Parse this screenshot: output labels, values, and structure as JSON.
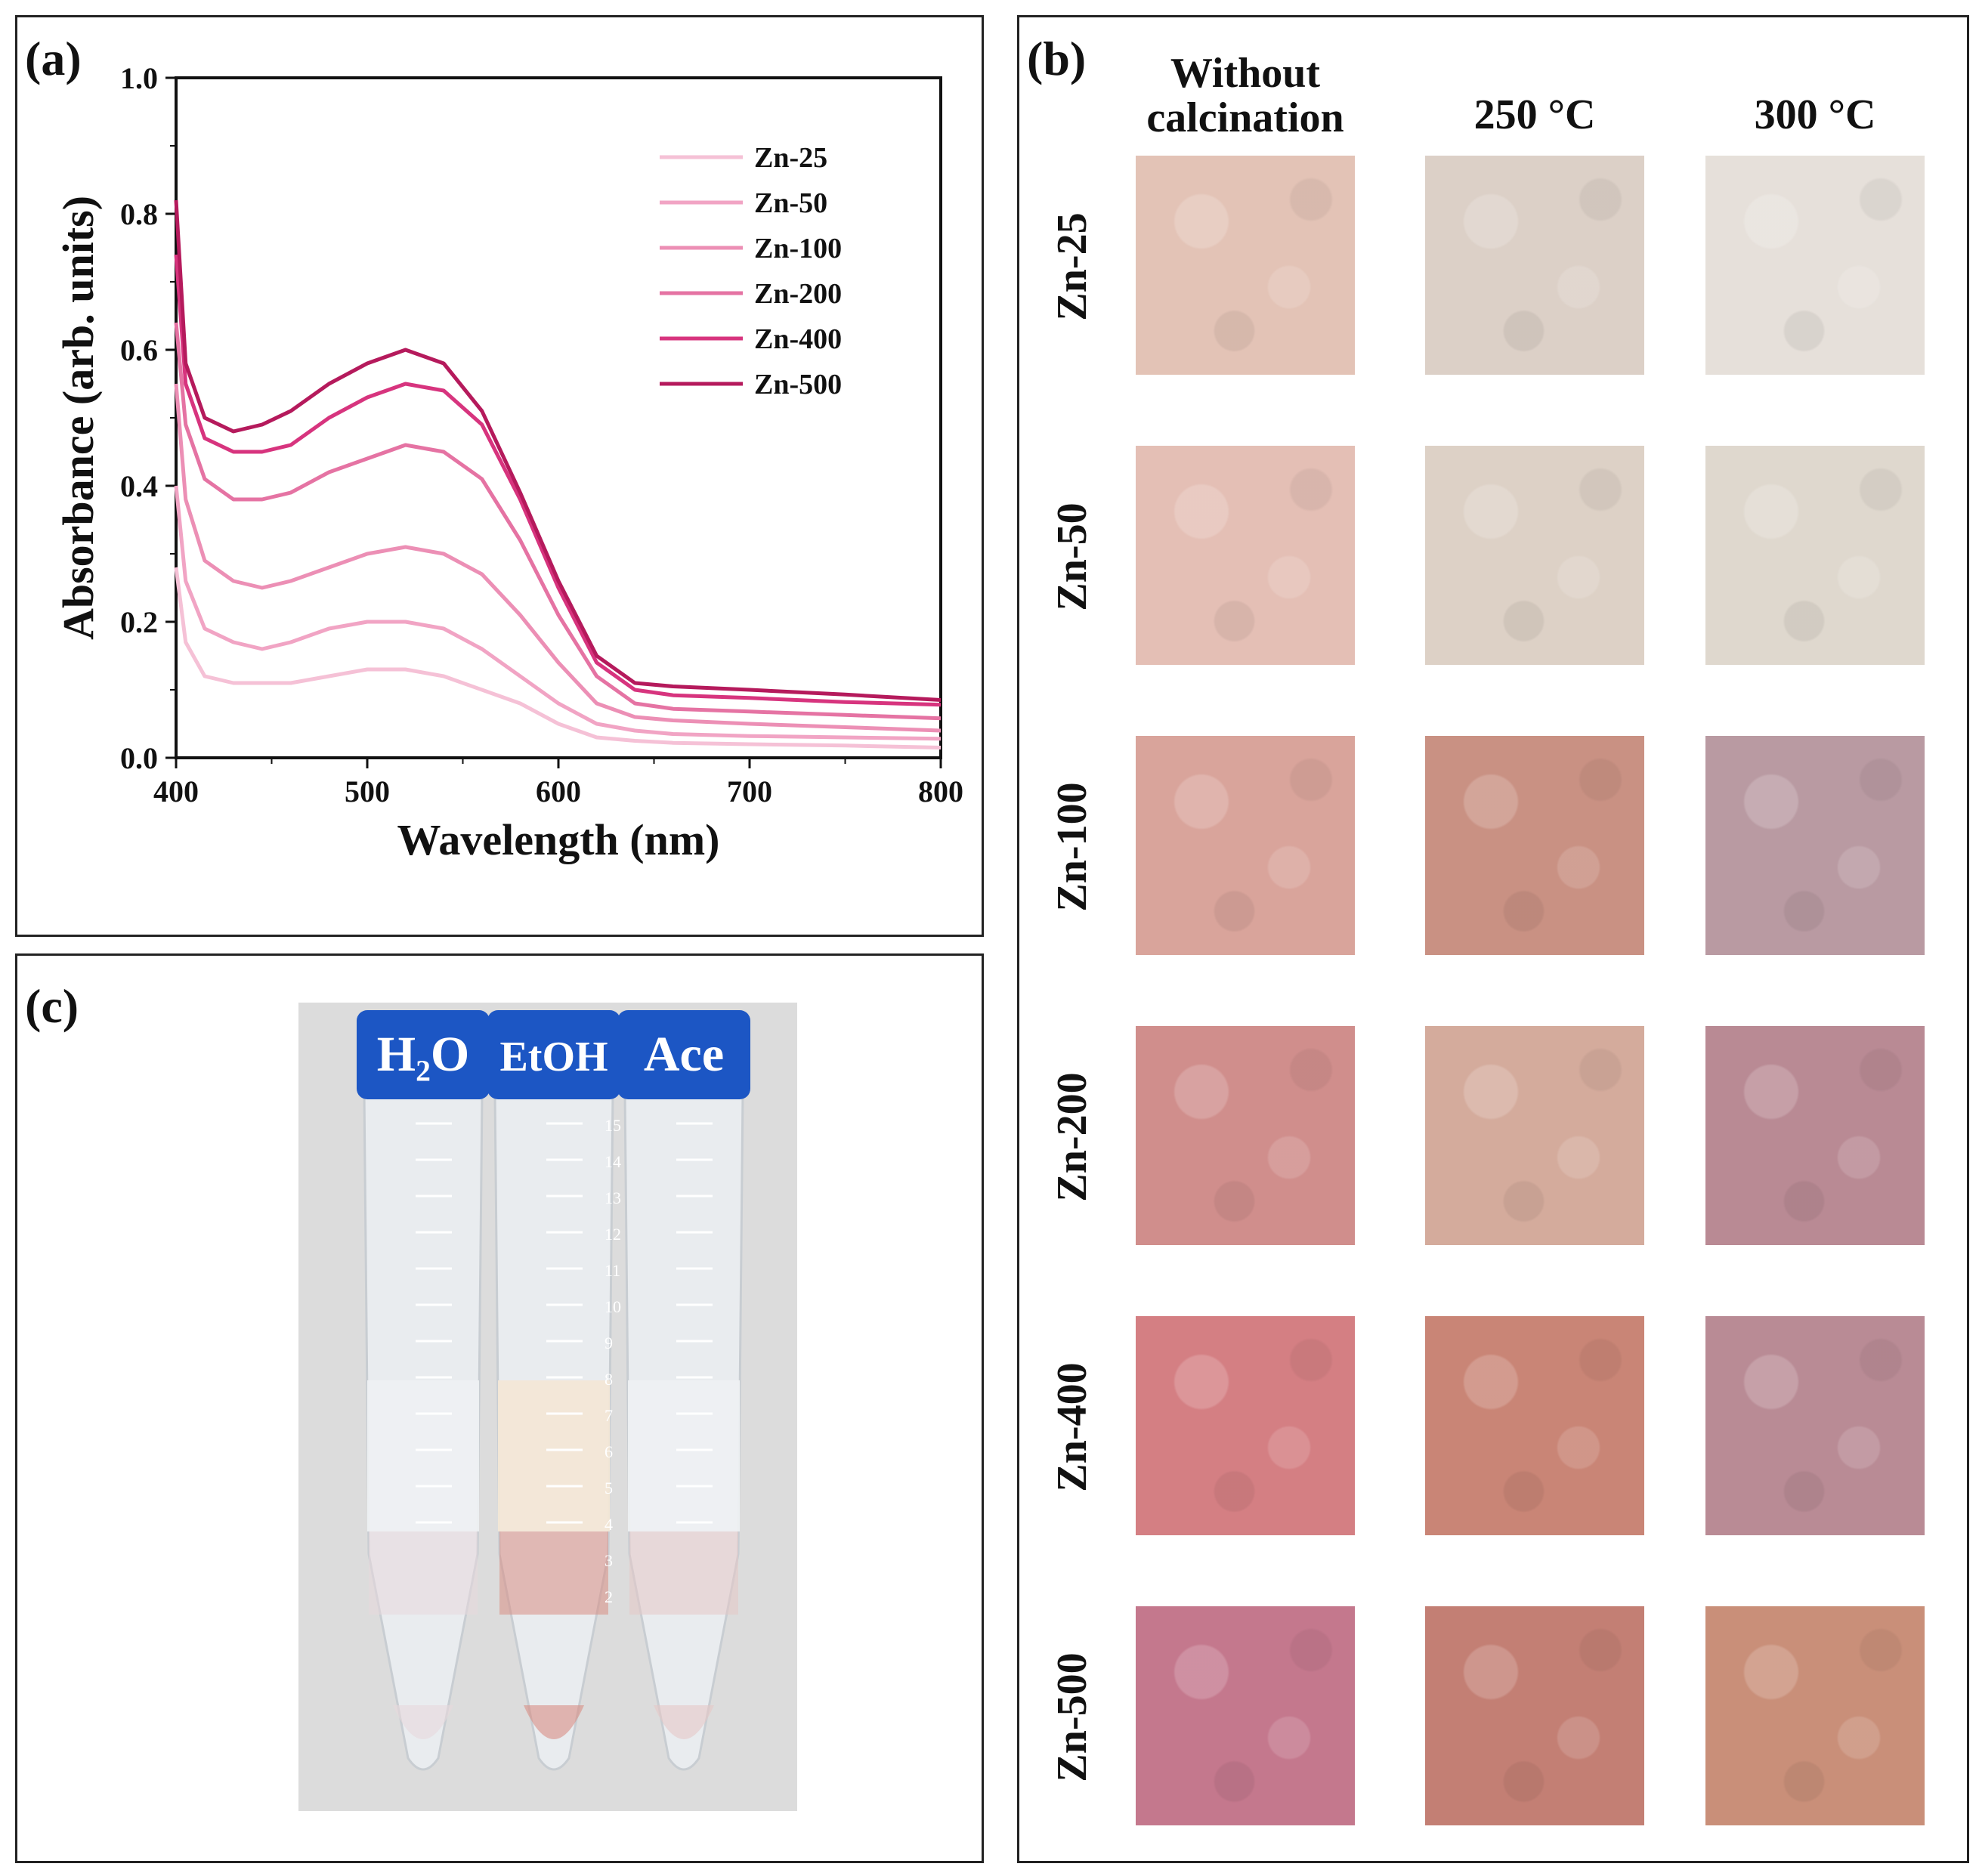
{
  "panel_a": {
    "label": "(a)",
    "chart_data": {
      "type": "line",
      "title": "",
      "xlabel": "Wavelength (nm)",
      "ylabel": "Absorbance (arb. units)",
      "xlim": [
        400,
        800
      ],
      "ylim": [
        0.0,
        1.0
      ],
      "xticks": [
        "400",
        "500",
        "600",
        "700",
        "800"
      ],
      "yticks": [
        "0.0",
        "0.2",
        "0.4",
        "0.6",
        "0.8",
        "1.0"
      ],
      "x": [
        400,
        405,
        415,
        430,
        445,
        460,
        480,
        500,
        520,
        540,
        560,
        580,
        600,
        620,
        640,
        660,
        700,
        750,
        800
      ],
      "legend_position": "top-right",
      "series": [
        {
          "name": "Zn-25",
          "color": "#f5c1d6",
          "values": [
            0.28,
            0.17,
            0.12,
            0.11,
            0.11,
            0.11,
            0.12,
            0.13,
            0.13,
            0.12,
            0.1,
            0.08,
            0.05,
            0.03,
            0.025,
            0.022,
            0.02,
            0.018,
            0.015
          ]
        },
        {
          "name": "Zn-50",
          "color": "#f1a4c4",
          "values": [
            0.4,
            0.26,
            0.19,
            0.17,
            0.16,
            0.17,
            0.19,
            0.2,
            0.2,
            0.19,
            0.16,
            0.12,
            0.08,
            0.05,
            0.04,
            0.035,
            0.032,
            0.03,
            0.028
          ]
        },
        {
          "name": "Zn-100",
          "color": "#ec8fb5",
          "values": [
            0.55,
            0.38,
            0.29,
            0.26,
            0.25,
            0.26,
            0.28,
            0.3,
            0.31,
            0.3,
            0.27,
            0.21,
            0.14,
            0.08,
            0.06,
            0.055,
            0.05,
            0.045,
            0.04
          ]
        },
        {
          "name": "Zn-200",
          "color": "#e573a3",
          "values": [
            0.64,
            0.49,
            0.41,
            0.38,
            0.38,
            0.39,
            0.42,
            0.44,
            0.46,
            0.45,
            0.41,
            0.32,
            0.21,
            0.12,
            0.08,
            0.072,
            0.068,
            0.063,
            0.058
          ]
        },
        {
          "name": "Zn-400",
          "color": "#d7347e",
          "values": [
            0.74,
            0.55,
            0.47,
            0.45,
            0.45,
            0.46,
            0.5,
            0.53,
            0.55,
            0.54,
            0.49,
            0.38,
            0.25,
            0.14,
            0.1,
            0.092,
            0.088,
            0.082,
            0.078
          ]
        },
        {
          "name": "Zn-500",
          "color": "#b51a5c",
          "values": [
            0.82,
            0.58,
            0.5,
            0.48,
            0.49,
            0.51,
            0.55,
            0.58,
            0.6,
            0.58,
            0.51,
            0.39,
            0.26,
            0.15,
            0.11,
            0.105,
            0.1,
            0.093,
            0.085
          ]
        }
      ]
    }
  },
  "panel_b": {
    "label": "(b)",
    "columns": [
      "Without calcination",
      "250 °C",
      "300 °C"
    ],
    "rows": [
      {
        "name": "Zn-25",
        "colors": [
          "#e3c3b6",
          "#dcd0c7",
          "#e6e0da"
        ]
      },
      {
        "name": "Zn-50",
        "colors": [
          "#e4bfb5",
          "#ddd1c6",
          "#dfd8ce"
        ]
      },
      {
        "name": "Zn-100",
        "colors": [
          "#d9a49b",
          "#c99183",
          "#b99aa2"
        ]
      },
      {
        "name": "Zn-200",
        "colors": [
          "#d08e8c",
          "#d4ab9c",
          "#b98a94"
        ]
      },
      {
        "name": "Zn-400",
        "colors": [
          "#d47f83",
          "#c98576",
          "#b98b95"
        ]
      },
      {
        "name": "Zn-500",
        "colors": [
          "#c4788d",
          "#c37f74",
          "#c98f79"
        ]
      }
    ]
  },
  "panel_c": {
    "label": "(c)",
    "tubes": [
      {
        "cap": "H₂O",
        "contents": "#eef0f2",
        "sediment": "#e7d8dc"
      },
      {
        "cap": "EtOH",
        "contents": "#f3e7d6",
        "sediment": "#d88e84"
      },
      {
        "cap": "Ace",
        "contents": "#eef0f2",
        "sediment": "#e6c8c6"
      }
    ],
    "scale_marks": [
      "15",
      "14",
      "13",
      "12",
      "11",
      "10",
      "9",
      "8",
      "7",
      "6",
      "5",
      "4",
      "3",
      "2"
    ]
  }
}
